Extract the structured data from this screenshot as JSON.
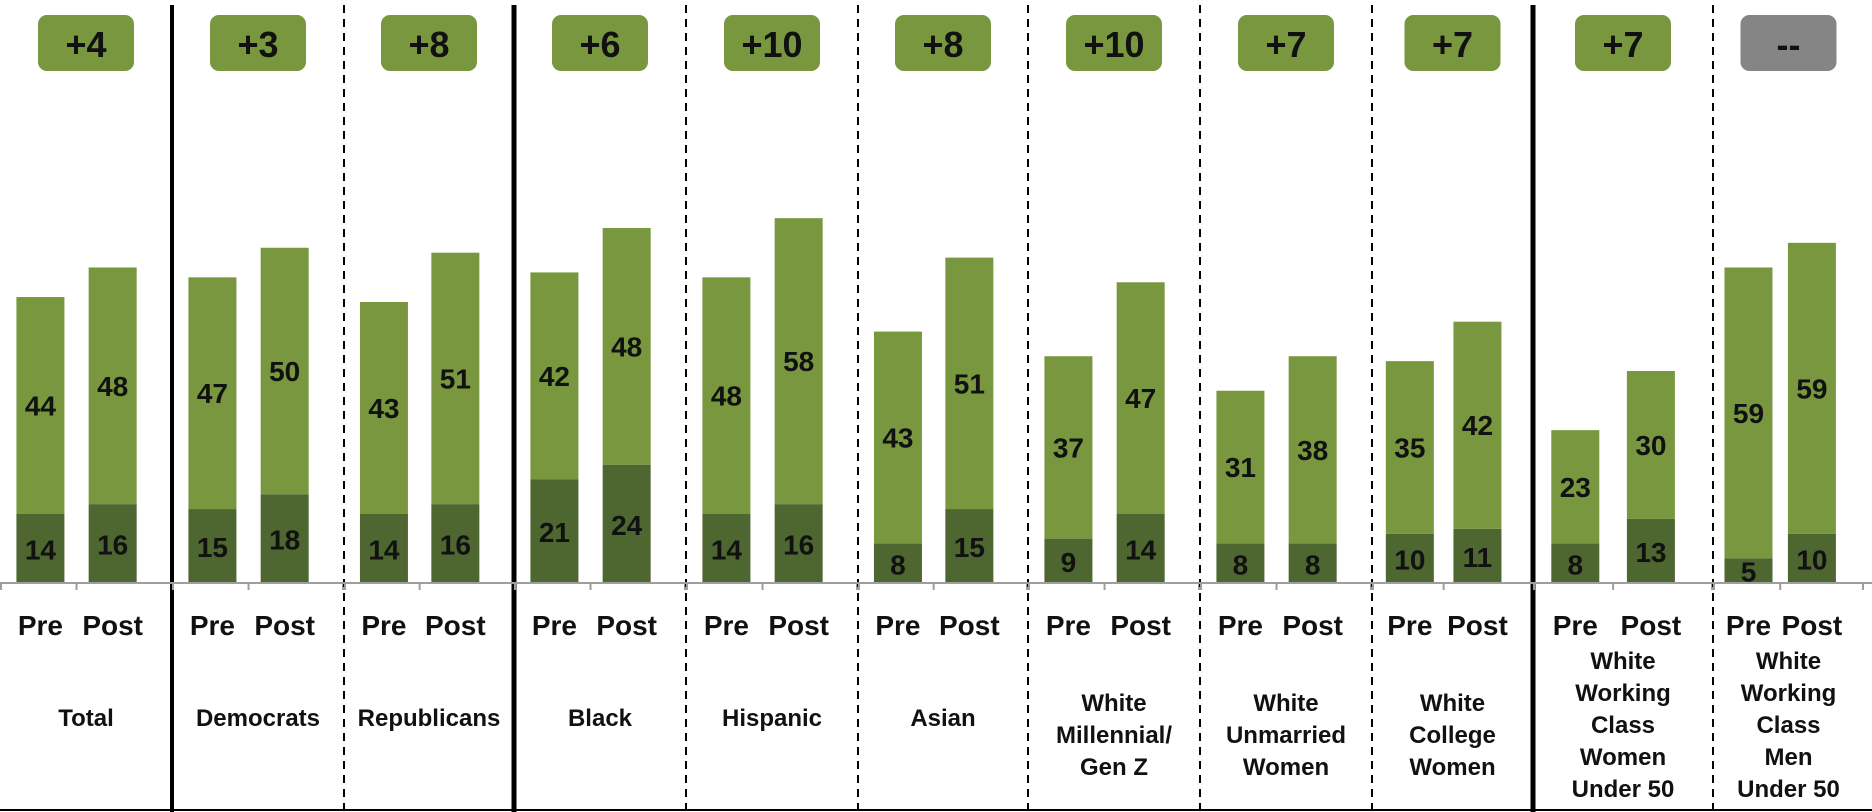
{
  "colors": {
    "light_bar": "#78973e",
    "dark_bar": "#4e6630",
    "badge_fill": "#78973e",
    "badge_neutral_fill": "#858585",
    "axis": "#9e9e9e",
    "divider": "#000000",
    "text": "#111111"
  },
  "chart_data": {
    "type": "bar",
    "stacked": true,
    "ylim": [
      0,
      75
    ],
    "grid": false,
    "legend": "none",
    "series": [
      {
        "key": "dark",
        "color": "#4e6630"
      },
      {
        "key": "light",
        "color": "#78973e"
      }
    ],
    "groups": [
      {
        "label": [
          "Total"
        ],
        "badge": "+4",
        "divider_after": "solid-thin",
        "bars": [
          {
            "tick": "Pre",
            "dark": 14,
            "light": 44
          },
          {
            "tick": "Post",
            "dark": 16,
            "light": 48
          }
        ]
      },
      {
        "label": [
          "Democrats"
        ],
        "badge": "+3",
        "divider_after": "dashed",
        "bars": [
          {
            "tick": "Pre",
            "dark": 15,
            "light": 47
          },
          {
            "tick": "Post",
            "dark": 18,
            "light": 50
          }
        ]
      },
      {
        "label": [
          "Republicans"
        ],
        "badge": "+8",
        "divider_after": "solid",
        "bars": [
          {
            "tick": "Pre",
            "dark": 14,
            "light": 43
          },
          {
            "tick": "Post",
            "dark": 16,
            "light": 51
          }
        ]
      },
      {
        "label": [
          "Black"
        ],
        "badge": "+6",
        "divider_after": "dashed",
        "bars": [
          {
            "tick": "Pre",
            "dark": 21,
            "light": 42
          },
          {
            "tick": "Post",
            "dark": 24,
            "light": 48
          }
        ]
      },
      {
        "label": [
          "Hispanic"
        ],
        "badge": "+10",
        "divider_after": "dashed",
        "bars": [
          {
            "tick": "Pre",
            "dark": 14,
            "light": 48
          },
          {
            "tick": "Post",
            "dark": 16,
            "light": 58
          }
        ]
      },
      {
        "label": [
          "Asian"
        ],
        "badge": "+8",
        "divider_after": "dashed",
        "bars": [
          {
            "tick": "Pre",
            "dark": 8,
            "light": 43
          },
          {
            "tick": "Post",
            "dark": 15,
            "light": 51
          }
        ]
      },
      {
        "label": [
          "White",
          "Millennial/",
          "Gen Z"
        ],
        "badge": "+10",
        "divider_after": "dashed",
        "bars": [
          {
            "tick": "Pre",
            "dark": 9,
            "light": 37
          },
          {
            "tick": "Post",
            "dark": 14,
            "light": 47
          }
        ]
      },
      {
        "label": [
          "White",
          "Unmarried",
          "Women"
        ],
        "badge": "+7",
        "divider_after": "dashed",
        "bars": [
          {
            "tick": "Pre",
            "dark": 8,
            "light": 31
          },
          {
            "tick": "Post",
            "dark": 8,
            "light": 38
          }
        ]
      },
      {
        "label": [
          "White",
          "College",
          "Women"
        ],
        "badge": "+7",
        "divider_after": "solid",
        "bars": [
          {
            "tick": "Pre",
            "dark": 10,
            "light": 35
          },
          {
            "tick": "Post",
            "dark": 11,
            "light": 42
          }
        ]
      },
      {
        "label": [
          "White",
          "Working",
          "Class",
          "Women",
          "Under 50"
        ],
        "badge": "+7",
        "divider_after": "dashed",
        "bars": [
          {
            "tick": "Pre",
            "dark": 8,
            "light": 23
          },
          {
            "tick": "Post",
            "dark": 13,
            "light": 30
          }
        ]
      },
      {
        "label": [
          "White",
          "Working",
          "Class",
          "Men",
          "Under 50"
        ],
        "badge": "--",
        "badge_neutral": true,
        "divider_after": "none",
        "bars": [
          {
            "tick": "Pre",
            "dark": 5,
            "light": 59
          },
          {
            "tick": "Post",
            "dark": 10,
            "light": 59
          }
        ]
      }
    ]
  }
}
